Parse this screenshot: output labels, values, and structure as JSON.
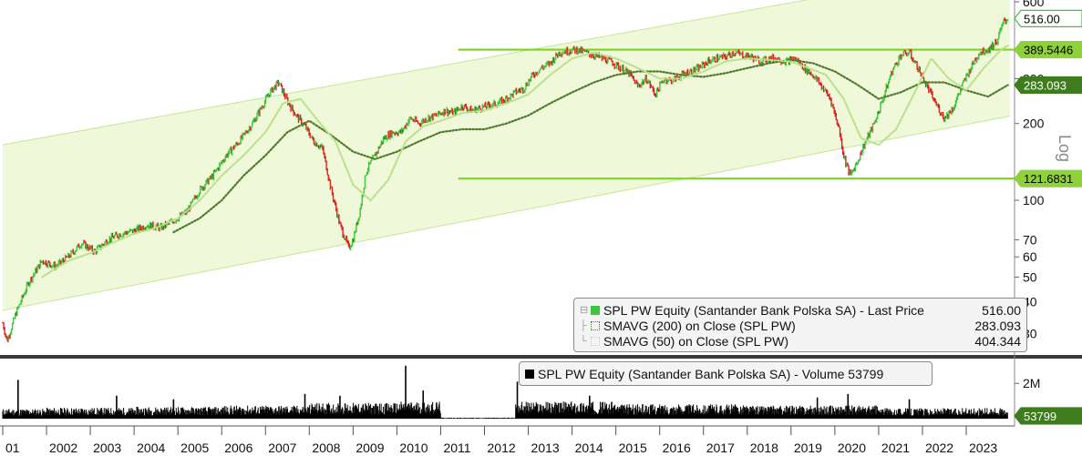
{
  "chart_data": [
    {
      "type": "line",
      "title": "",
      "scale": "log",
      "ylim": [
        26,
        610
      ],
      "x_range": [
        2001.0,
        2024.0
      ],
      "y_ticks": [
        30,
        40,
        50,
        60,
        70,
        100,
        200,
        300,
        600
      ],
      "y_tick_labels": [
        "30",
        "40",
        "50",
        "60",
        "70",
        "100",
        "200",
        "300",
        "600"
      ],
      "x_tick_labels": [
        "01",
        "2002",
        "2003",
        "2004",
        "2005",
        "2006",
        "2007",
        "2008",
        "2009",
        "2010",
        "2011",
        "2012",
        "2013",
        "2014",
        "2015",
        "2016",
        "2017",
        "2018",
        "2019",
        "2020",
        "2021",
        "2022",
        "2023"
      ],
      "axis_word": "Log",
      "series": [
        {
          "name": "SPL PW Equity (Santander Bank Polska SA) - Last Price",
          "last": "516.00",
          "color": "#3ec43e",
          "x": [
            2001.0,
            2001.1,
            2001.3,
            2001.6,
            2001.9,
            2002.2,
            2002.5,
            2002.8,
            2003.1,
            2003.4,
            2003.7,
            2004.0,
            2004.3,
            2004.6,
            2004.9,
            2005.2,
            2005.5,
            2005.8,
            2006.1,
            2006.4,
            2006.7,
            2006.9,
            2007.1,
            2007.3,
            2007.5,
            2007.7,
            2007.9,
            2008.1,
            2008.3,
            2008.5,
            2008.7,
            2008.9,
            2009.0,
            2009.15,
            2009.3,
            2009.5,
            2009.7,
            2009.9,
            2010.1,
            2010.3,
            2010.5,
            2010.7,
            2010.9,
            2011.1,
            2011.3,
            2011.5,
            2011.7,
            2011.9,
            2012.1,
            2012.3,
            2012.5,
            2012.7,
            2012.9,
            2013.1,
            2013.3,
            2013.5,
            2013.7,
            2013.9,
            2014.1,
            2014.3,
            2014.5,
            2014.7,
            2014.9,
            2015.1,
            2015.3,
            2015.5,
            2015.7,
            2015.9,
            2016.1,
            2016.3,
            2016.5,
            2016.7,
            2016.9,
            2017.1,
            2017.3,
            2017.5,
            2017.7,
            2017.9,
            2018.1,
            2018.3,
            2018.5,
            2018.7,
            2018.9,
            2019.1,
            2019.3,
            2019.5,
            2019.7,
            2019.9,
            2020.1,
            2020.2,
            2020.35,
            2020.5,
            2020.7,
            2020.9,
            2021.1,
            2021.3,
            2021.5,
            2021.7,
            2021.9,
            2022.1,
            2022.3,
            2022.5,
            2022.7,
            2022.9,
            2023.1,
            2023.3,
            2023.5,
            2023.7,
            2023.85,
            2023.95
          ],
          "values": [
            33,
            28,
            36,
            48,
            58,
            55,
            60,
            68,
            63,
            70,
            74,
            76,
            80,
            78,
            83,
            90,
            110,
            125,
            150,
            170,
            200,
            230,
            265,
            290,
            245,
            215,
            195,
            170,
            160,
            110,
            80,
            65,
            70,
            90,
            130,
            150,
            175,
            185,
            185,
            210,
            200,
            210,
            215,
            225,
            220,
            235,
            225,
            230,
            235,
            240,
            250,
            265,
            275,
            310,
            330,
            345,
            380,
            385,
            390,
            380,
            370,
            360,
            350,
            330,
            315,
            280,
            300,
            260,
            300,
            295,
            310,
            320,
            330,
            350,
            360,
            365,
            380,
            370,
            365,
            350,
            360,
            360,
            350,
            360,
            330,
            310,
            280,
            250,
            190,
            150,
            125,
            140,
            170,
            200,
            250,
            320,
            370,
            380,
            330,
            280,
            240,
            210,
            230,
            280,
            330,
            380,
            390,
            420,
            500,
            516
          ]
        },
        {
          "name": "SMAVG (200) on Close (SPL PW)",
          "last": "283.093",
          "color": "#4f7a2a",
          "x": [
            2004.9,
            2005.5,
            2006.0,
            2006.5,
            2007.0,
            2007.5,
            2008.0,
            2008.5,
            2009.0,
            2009.5,
            2010.0,
            2010.5,
            2011.0,
            2011.5,
            2012.0,
            2012.5,
            2013.0,
            2013.5,
            2014.0,
            2014.5,
            2015.0,
            2015.5,
            2016.0,
            2016.5,
            2017.0,
            2017.5,
            2018.0,
            2018.5,
            2019.0,
            2019.5,
            2020.0,
            2020.5,
            2021.0,
            2021.5,
            2022.0,
            2022.5,
            2023.0,
            2023.5,
            2023.95
          ],
          "values": [
            75,
            85,
            100,
            125,
            150,
            185,
            205,
            180,
            155,
            145,
            155,
            170,
            185,
            190,
            190,
            200,
            215,
            240,
            265,
            290,
            310,
            320,
            320,
            310,
            305,
            315,
            330,
            345,
            355,
            345,
            320,
            285,
            250,
            265,
            290,
            290,
            270,
            255,
            283
          ]
        },
        {
          "name": "SMAVG (50) on Close (SPL PW)",
          "last": "404.344",
          "color": "#b9e08b",
          "x": [
            2001.9,
            2002.5,
            2003.0,
            2003.5,
            2004.0,
            2004.5,
            2005.0,
            2005.5,
            2006.0,
            2006.5,
            2007.0,
            2007.4,
            2007.8,
            2008.2,
            2008.6,
            2009.0,
            2009.4,
            2009.8,
            2010.2,
            2010.6,
            2011.0,
            2011.5,
            2012.0,
            2012.5,
            2013.0,
            2013.5,
            2014.0,
            2014.5,
            2015.0,
            2015.5,
            2016.0,
            2016.5,
            2017.0,
            2017.5,
            2018.0,
            2018.5,
            2019.0,
            2019.4,
            2019.8,
            2020.2,
            2020.6,
            2021.0,
            2021.4,
            2021.8,
            2022.2,
            2022.6,
            2023.0,
            2023.4,
            2023.8,
            2023.95
          ],
          "values": [
            50,
            58,
            62,
            68,
            74,
            78,
            85,
            100,
            125,
            150,
            185,
            240,
            250,
            205,
            170,
            115,
            100,
            120,
            170,
            195,
            205,
            220,
            225,
            240,
            260,
            310,
            360,
            380,
            360,
            330,
            300,
            300,
            320,
            350,
            360,
            355,
            350,
            330,
            310,
            250,
            175,
            165,
            190,
            260,
            360,
            300,
            270,
            330,
            390,
            404
          ]
        }
      ],
      "channel": {
        "upper": [
          [
            2001.0,
            165
          ],
          [
            2024.0,
            850
          ]
        ],
        "lower": [
          [
            2001.0,
            37
          ],
          [
            2024.0,
            214
          ]
        ]
      },
      "horizontal_lines": [
        {
          "value": 389.5446,
          "label": "389.5446",
          "from": 2011.4
        },
        {
          "value": 121.6831,
          "label": "121.6831",
          "from": 2011.4
        }
      ],
      "value_badges": [
        {
          "label": "516.00",
          "value": 516,
          "style": "outline"
        },
        {
          "label": "389.5446",
          "value": 389.5446,
          "style": "lime"
        },
        {
          "label": "283.093",
          "value": 283.093,
          "style": "dark"
        },
        {
          "label": "121.6831",
          "value": 121.6831,
          "style": "lime"
        }
      ]
    },
    {
      "type": "bar",
      "title": "",
      "y_tick_labels": [
        "2M"
      ],
      "y_ticks": [
        2000000
      ],
      "ylim": [
        0,
        3300000
      ],
      "series": [
        {
          "name": "SPL PW Equity (Santander Bank Polska SA) - Volume",
          "last": "53799",
          "color": "#000000",
          "periods": [
            [
              2001.0,
              2002.0
            ],
            [
              2002.0,
              2004.0
            ],
            [
              2004.0,
              2006.0
            ],
            [
              2006.0,
              2008.0
            ],
            [
              2008.0,
              2010.0
            ],
            [
              2010.0,
              2011.0
            ],
            [
              2011.0,
              2012.7
            ],
            [
              2012.7,
              2015.0
            ],
            [
              2015.0,
              2018.0
            ],
            [
              2018.0,
              2021.0
            ],
            [
              2021.0,
              2024.0
            ]
          ],
          "typical_volume": [
            380000,
            420000,
            450000,
            500000,
            600000,
            650000,
            40000,
            650000,
            550000,
            500000,
            400000
          ],
          "spikes": [
            [
              2001.35,
              2200000
            ],
            [
              2003.6,
              1300000
            ],
            [
              2004.9,
              1100000
            ],
            [
              2007.9,
              1400000
            ],
            [
              2008.7,
              1300000
            ],
            [
              2010.2,
              3000000
            ],
            [
              2010.6,
              1600000
            ],
            [
              2012.75,
              2100000
            ],
            [
              2014.4,
              1300000
            ],
            [
              2019.6,
              1200000
            ],
            [
              2020.3,
              1400000
            ],
            [
              2021.7,
              1100000
            ]
          ]
        }
      ],
      "value_badges": [
        {
          "label": "53799",
          "value": 53799,
          "style": "dark"
        }
      ]
    }
  ],
  "legend_main": {
    "rows": [
      {
        "name": "SPL PW Equity (Santander Bank Polska SA) - Last Price",
        "value": "516.00"
      },
      {
        "name": "SMAVG (200)  on Close (SPL PW)",
        "value": "283.093"
      },
      {
        "name": "SMAVG (50)  on Close (SPL PW)",
        "value": "404.344"
      }
    ]
  },
  "legend_volume": {
    "name": "SPL PW Equity (Santander Bank Polska SA) - Volume 53799"
  },
  "colors": {
    "channel_fill": "#eff8d8",
    "channel_edge": "#c6e697",
    "hline": "#7ed321",
    "up_candle": "#3ec43e",
    "down_candle": "#e02020",
    "badge_lime": "#8fd13a",
    "badge_dark": "#3f7c1e"
  }
}
